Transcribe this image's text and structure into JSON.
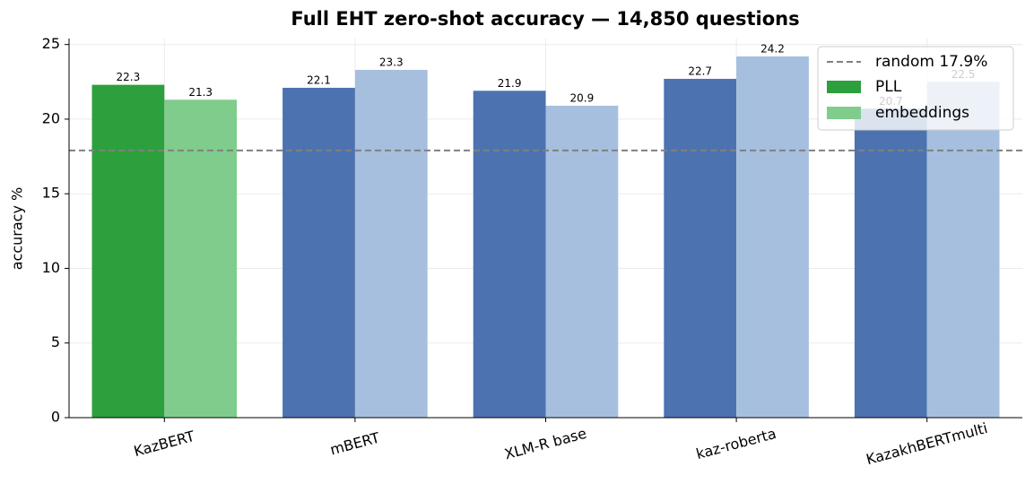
{
  "chart_data": {
    "type": "bar",
    "title": "Full EHT zero-shot accuracy — 14,850 questions",
    "y_label": "accuracy %",
    "categories": [
      "KazBERT",
      "mBERT",
      "XLM-R base",
      "kaz-roberta",
      "KazakhBERTmulti"
    ],
    "series": [
      {
        "name": "PLL",
        "color": "#2ca03c",
        "colors": [
          "#2ca03c",
          "#4c72b0",
          "#4c72b0",
          "#4c72b0",
          "#4c72b0"
        ],
        "values": [
          22.3,
          22.1,
          21.9,
          22.7,
          20.7
        ]
      },
      {
        "name": "embeddings",
        "color": "#80cc8c",
        "colors": [
          "#80cc8c",
          "#a6bfdf",
          "#a6bfdf",
          "#a6bfdf",
          "#a6bfdf"
        ],
        "values": [
          21.3,
          23.3,
          20.9,
          24.2,
          22.5
        ]
      }
    ],
    "reference_line": {
      "value": 17.9,
      "label": "random 17.9%",
      "color": "#808080"
    },
    "ylim": [
      0,
      25.4
    ],
    "yticks": [
      0,
      5,
      10,
      15,
      20,
      25
    ],
    "grid": true,
    "legend": "upper right"
  }
}
